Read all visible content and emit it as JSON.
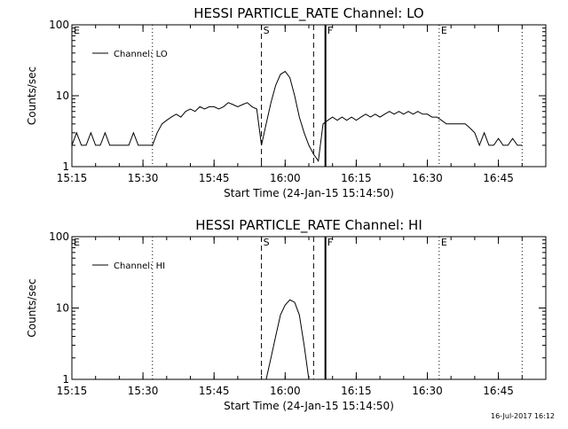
{
  "chart_data": [
    {
      "type": "line",
      "title": "HESSI PARTICLE_RATE Channel: LO",
      "xlabel": "Start Time (24-Jan-15 15:14:50)",
      "ylabel": "Counts/sec",
      "yscale": "log",
      "ylim": [
        1,
        100
      ],
      "xlim": [
        "15:15",
        "16:55"
      ],
      "x_ticks": [
        "15:15",
        "15:30",
        "15:45",
        "16:00",
        "16:15",
        "16:30",
        "16:45"
      ],
      "y_ticks": [
        "1",
        "10",
        "100"
      ],
      "legend": {
        "label": "Channel: LO",
        "placement": "top-left"
      },
      "markers": [
        {
          "label": "E",
          "time": "15:15",
          "style": "dotted"
        },
        {
          "label": "",
          "time": "15:32",
          "style": "dotted"
        },
        {
          "label": "S",
          "time": "15:55",
          "style": "dashed"
        },
        {
          "label": "",
          "time": "16:06",
          "style": "dashed"
        },
        {
          "label": "F",
          "time": "16:08.5",
          "style": "solid"
        },
        {
          "label": "E",
          "time": "16:32.5",
          "style": "dotted"
        },
        {
          "label": "",
          "time": "16:50",
          "style": "dotted"
        }
      ],
      "series": [
        {
          "name": "Channel: LO",
          "x": [
            "15:15",
            "15:16",
            "15:17",
            "15:18",
            "15:19",
            "15:20",
            "15:21",
            "15:22",
            "15:23",
            "15:24",
            "15:25",
            "15:26",
            "15:27",
            "15:28",
            "15:29",
            "15:30",
            "15:31",
            "15:32",
            "15:33",
            "15:34",
            "15:35",
            "15:36",
            "15:37",
            "15:38",
            "15:39",
            "15:40",
            "15:41",
            "15:42",
            "15:43",
            "15:44",
            "15:45",
            "15:46",
            "15:47",
            "15:48",
            "15:49",
            "15:50",
            "15:51",
            "15:52",
            "15:53",
            "15:54",
            "15:55",
            "15:56",
            "15:57",
            "15:58",
            "15:59",
            "16:00",
            "16:01",
            "16:02",
            "16:03",
            "16:04",
            "16:05",
            "16:06",
            "16:07",
            "16:08",
            "16:09",
            "16:10",
            "16:11",
            "16:12",
            "16:13",
            "16:14",
            "16:15",
            "16:16",
            "16:17",
            "16:18",
            "16:19",
            "16:20",
            "16:21",
            "16:22",
            "16:23",
            "16:24",
            "16:25",
            "16:26",
            "16:27",
            "16:28",
            "16:29",
            "16:30",
            "16:31",
            "16:32",
            "16:33",
            "16:34",
            "16:35",
            "16:36",
            "16:37",
            "16:38",
            "16:39",
            "16:40",
            "16:41",
            "16:42",
            "16:43",
            "16:44",
            "16:45",
            "16:46",
            "16:47",
            "16:48",
            "16:49",
            "16:50"
          ],
          "y": [
            2,
            3,
            2,
            2,
            3,
            2,
            2,
            3,
            2,
            2,
            2,
            2,
            2,
            3,
            2,
            2,
            2,
            2,
            3,
            4,
            4.5,
            5,
            5.5,
            5,
            6,
            6.5,
            6,
            7,
            6.5,
            7,
            7,
            6.5,
            7,
            8,
            7.5,
            7,
            7.5,
            8,
            7,
            6.5,
            2,
            4,
            8,
            14,
            20,
            22,
            18,
            10,
            5,
            3,
            2,
            1.5,
            1.2,
            4,
            4.5,
            5,
            4.5,
            5,
            4.5,
            5,
            4.5,
            5,
            5.5,
            5,
            5.5,
            5,
            5.5,
            6,
            5.5,
            6,
            5.5,
            6,
            5.5,
            6,
            5.5,
            5.5,
            5,
            5,
            4.5,
            4,
            4,
            4,
            4,
            4,
            3.5,
            3,
            2,
            3,
            2,
            2,
            2.5,
            2,
            2,
            2.5,
            2,
            2
          ]
        }
      ]
    },
    {
      "type": "line",
      "title": "HESSI PARTICLE_RATE Channel: HI",
      "xlabel": "Start Time (24-Jan-15 15:14:50)",
      "ylabel": "Counts/sec",
      "yscale": "log",
      "ylim": [
        1,
        100
      ],
      "xlim": [
        "15:15",
        "16:55"
      ],
      "x_ticks": [
        "15:15",
        "15:30",
        "15:45",
        "16:00",
        "16:15",
        "16:30",
        "16:45"
      ],
      "y_ticks": [
        "1",
        "10",
        "100"
      ],
      "legend": {
        "label": "Channel: HI",
        "placement": "top-left"
      },
      "markers": [
        {
          "label": "E",
          "time": "15:15",
          "style": "dotted"
        },
        {
          "label": "",
          "time": "15:32",
          "style": "dotted"
        },
        {
          "label": "S",
          "time": "15:55",
          "style": "dashed"
        },
        {
          "label": "",
          "time": "16:06",
          "style": "dashed"
        },
        {
          "label": "F",
          "time": "16:08.5",
          "style": "solid"
        },
        {
          "label": "E",
          "time": "16:32.5",
          "style": "dotted"
        },
        {
          "label": "",
          "time": "16:50",
          "style": "dotted"
        }
      ],
      "series": [
        {
          "name": "Channel: HI",
          "x": [
            "15:56",
            "15:57",
            "15:58",
            "15:59",
            "16:00",
            "16:01",
            "16:02",
            "16:03",
            "16:04",
            "16:05"
          ],
          "y": [
            1,
            2,
            4,
            8,
            11,
            13,
            12,
            8,
            3,
            1
          ]
        }
      ]
    }
  ],
  "timestamp": "16-Jul-2017 16:12"
}
